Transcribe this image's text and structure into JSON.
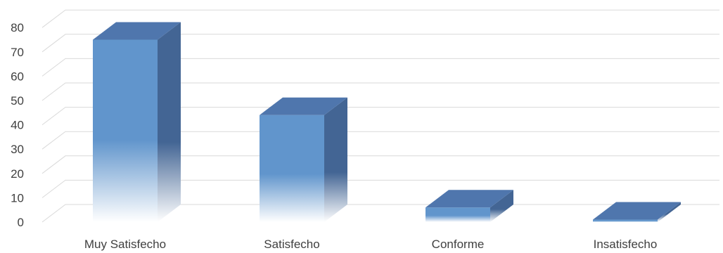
{
  "chart_data": {
    "type": "bar",
    "three_d": true,
    "categories": [
      "Muy Satisfecho",
      "Satisfecho",
      "Conforme",
      "Insatisfecho"
    ],
    "values": [
      75,
      44,
      6,
      1
    ],
    "ylim": [
      0,
      80
    ],
    "yticks": [
      "0",
      "10",
      "20",
      "30",
      "40",
      "50",
      "60",
      "70",
      "80"
    ],
    "grid": true,
    "legend": "none",
    "colors": {
      "front": "#6195CC",
      "front_fade": "#FFFFFF",
      "side": "#436594",
      "top": "#4F76AD",
      "grid": "#D9D9D9",
      "text": "#404040"
    }
  }
}
